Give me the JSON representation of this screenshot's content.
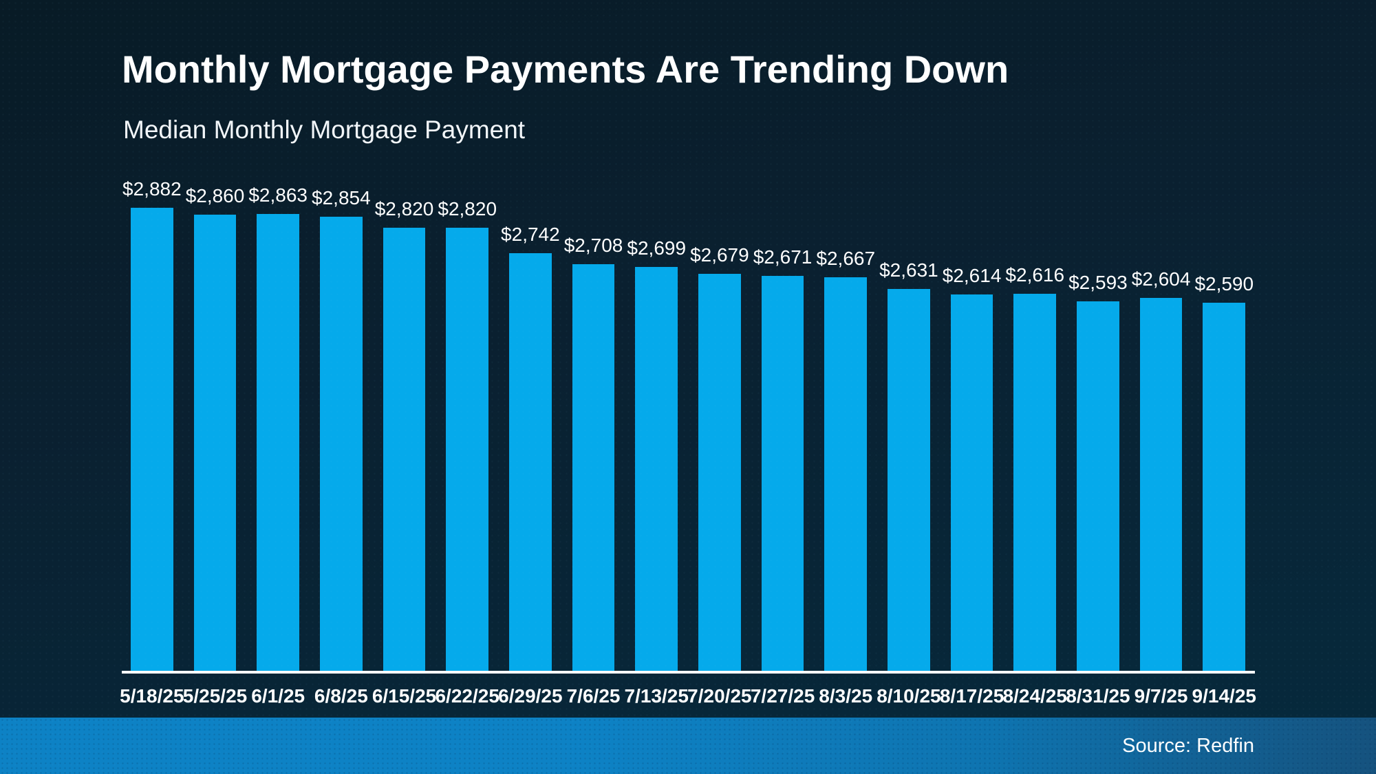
{
  "title": "Monthly Mortgage Payments Are Trending Down",
  "subtitle": "Median Monthly Mortgage Payment",
  "source": "Source: Redfin",
  "colors": {
    "background_top": "#081b26",
    "background_bottom": "#062a3d",
    "bar": "#05aaeb",
    "axis_line": "#ffffff",
    "text": "#ffffff",
    "band_left": "#0d82c5",
    "band_right": "#15527e"
  },
  "chart_data": {
    "type": "bar",
    "title": "Monthly Mortgage Payments Are Trending Down",
    "subtitle": "Median Monthly Mortgage Payment",
    "categories": [
      "5/18/25",
      "5/25/25",
      "6/1/25",
      "6/8/25",
      "6/15/25",
      "6/22/25",
      "6/29/25",
      "7/6/25",
      "7/13/25",
      "7/20/25",
      "7/27/25",
      "8/3/25",
      "8/10/25",
      "8/17/25",
      "8/24/25",
      "8/31/25",
      "9/7/25",
      "9/14/25"
    ],
    "values": [
      2882,
      2860,
      2863,
      2854,
      2820,
      2820,
      2742,
      2708,
      2699,
      2679,
      2671,
      2667,
      2631,
      2614,
      2616,
      2593,
      2604,
      2590
    ],
    "data_labels": [
      "$2,882",
      "$2,860",
      "$2,863",
      "$2,854",
      "$2,820",
      "$2,820",
      "$2,742",
      "$2,708",
      "$2,699",
      "$2,679",
      "$2,671",
      "$2,667",
      "$2,631",
      "$2,614",
      "$2,616",
      "$2,593",
      "$2,604",
      "$2,590"
    ],
    "xlabel": "",
    "ylabel": "",
    "ylim": [
      1450,
      2950
    ],
    "grid": false,
    "legend": false,
    "bar_color": "#05aaeb",
    "source": "Source: Redfin"
  }
}
